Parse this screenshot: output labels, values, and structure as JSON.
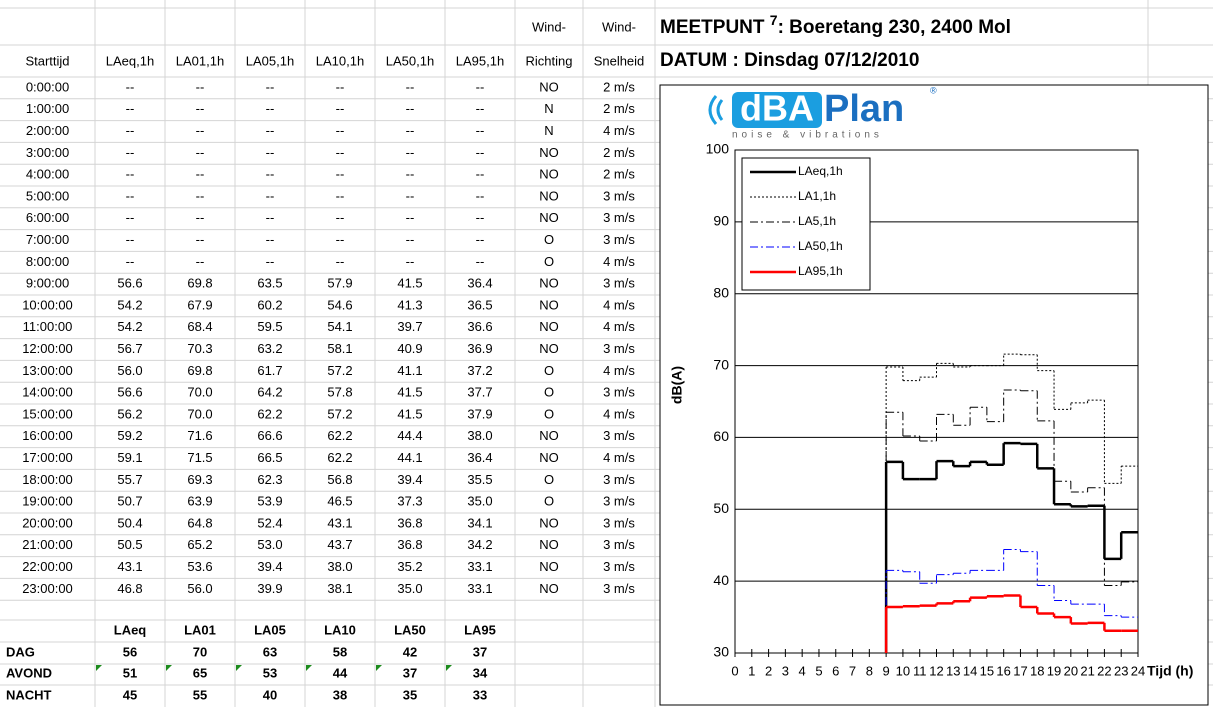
{
  "title": {
    "prefix": "MEETPUNT ",
    "number": "7",
    "rest": ": Boeretang 230, 2400 Mol"
  },
  "date": "DATUM : Dinsdag 07/12/2010",
  "logo": {
    "part1": "dBA",
    "part2": "Plan",
    "tagline": "noise & vibrations",
    "mark": "®"
  },
  "table": {
    "columns": [
      {
        "label": "Starttijd"
      },
      {
        "label": "LAeq,1h"
      },
      {
        "label": "LA01,1h"
      },
      {
        "label": "LA05,1h"
      },
      {
        "label": "LA10,1h"
      },
      {
        "label": "LA50,1h"
      },
      {
        "label": "LA95,1h"
      },
      {
        "top": "Wind-",
        "label": "Richting"
      },
      {
        "top": "Wind-",
        "label": "Snelheid"
      }
    ],
    "rows": [
      [
        "0:00:00",
        "--",
        "--",
        "--",
        "--",
        "--",
        "--",
        "NO",
        "2 m/s"
      ],
      [
        "1:00:00",
        "--",
        "--",
        "--",
        "--",
        "--",
        "--",
        "N",
        "2 m/s"
      ],
      [
        "2:00:00",
        "--",
        "--",
        "--",
        "--",
        "--",
        "--",
        "N",
        "4 m/s"
      ],
      [
        "3:00:00",
        "--",
        "--",
        "--",
        "--",
        "--",
        "--",
        "NO",
        "2 m/s"
      ],
      [
        "4:00:00",
        "--",
        "--",
        "--",
        "--",
        "--",
        "--",
        "NO",
        "2 m/s"
      ],
      [
        "5:00:00",
        "--",
        "--",
        "--",
        "--",
        "--",
        "--",
        "NO",
        "3 m/s"
      ],
      [
        "6:00:00",
        "--",
        "--",
        "--",
        "--",
        "--",
        "--",
        "NO",
        "3 m/s"
      ],
      [
        "7:00:00",
        "--",
        "--",
        "--",
        "--",
        "--",
        "--",
        "O",
        "3 m/s"
      ],
      [
        "8:00:00",
        "--",
        "--",
        "--",
        "--",
        "--",
        "--",
        "O",
        "4 m/s"
      ],
      [
        "9:00:00",
        "56.6",
        "69.8",
        "63.5",
        "57.9",
        "41.5",
        "36.4",
        "NO",
        "3 m/s"
      ],
      [
        "10:00:00",
        "54.2",
        "67.9",
        "60.2",
        "54.6",
        "41.3",
        "36.5",
        "NO",
        "4 m/s"
      ],
      [
        "11:00:00",
        "54.2",
        "68.4",
        "59.5",
        "54.1",
        "39.7",
        "36.6",
        "NO",
        "4 m/s"
      ],
      [
        "12:00:00",
        "56.7",
        "70.3",
        "63.2",
        "58.1",
        "40.9",
        "36.9",
        "NO",
        "3 m/s"
      ],
      [
        "13:00:00",
        "56.0",
        "69.8",
        "61.7",
        "57.2",
        "41.1",
        "37.2",
        "O",
        "4 m/s"
      ],
      [
        "14:00:00",
        "56.6",
        "70.0",
        "64.2",
        "57.8",
        "41.5",
        "37.7",
        "O",
        "3 m/s"
      ],
      [
        "15:00:00",
        "56.2",
        "70.0",
        "62.2",
        "57.2",
        "41.5",
        "37.9",
        "O",
        "4 m/s"
      ],
      [
        "16:00:00",
        "59.2",
        "71.6",
        "66.6",
        "62.2",
        "44.4",
        "38.0",
        "NO",
        "3 m/s"
      ],
      [
        "17:00:00",
        "59.1",
        "71.5",
        "66.5",
        "62.2",
        "44.1",
        "36.4",
        "NO",
        "4 m/s"
      ],
      [
        "18:00:00",
        "55.7",
        "69.3",
        "62.3",
        "56.8",
        "39.4",
        "35.5",
        "O",
        "3 m/s"
      ],
      [
        "19:00:00",
        "50.7",
        "63.9",
        "53.9",
        "46.5",
        "37.3",
        "35.0",
        "O",
        "3 m/s"
      ],
      [
        "20:00:00",
        "50.4",
        "64.8",
        "52.4",
        "43.1",
        "36.8",
        "34.1",
        "NO",
        "3 m/s"
      ],
      [
        "21:00:00",
        "50.5",
        "65.2",
        "53.0",
        "43.7",
        "36.8",
        "34.2",
        "NO",
        "3 m/s"
      ],
      [
        "22:00:00",
        "43.1",
        "53.6",
        "39.4",
        "38.0",
        "35.2",
        "33.1",
        "NO",
        "3 m/s"
      ],
      [
        "23:00:00",
        "46.8",
        "56.0",
        "39.9",
        "38.1",
        "35.0",
        "33.1",
        "NO",
        "3 m/s"
      ]
    ]
  },
  "summary": {
    "header": [
      "LAeq",
      "LA01",
      "LA05",
      "LA10",
      "LA50",
      "LA95"
    ],
    "rows": [
      [
        "DAG",
        "56",
        "70",
        "63",
        "58",
        "42",
        "37"
      ],
      [
        "AVOND",
        "51",
        "65",
        "53",
        "44",
        "37",
        "34"
      ],
      [
        "NACHT",
        "45",
        "55",
        "40",
        "38",
        "35",
        "33"
      ]
    ]
  },
  "chart_data": {
    "type": "step",
    "ylabel": "dB(A)",
    "xlabel": "Tijd (h)",
    "x": [
      9,
      10,
      11,
      12,
      13,
      14,
      15,
      16,
      17,
      18,
      19,
      20,
      21,
      22,
      23
    ],
    "xlim": [
      0,
      24
    ],
    "xticks": [
      0,
      1,
      2,
      3,
      4,
      5,
      6,
      7,
      8,
      9,
      10,
      11,
      12,
      13,
      14,
      15,
      16,
      17,
      18,
      19,
      20,
      21,
      22,
      23,
      24
    ],
    "ylim": [
      30,
      100
    ],
    "yticks": [
      30,
      40,
      50,
      60,
      70,
      80,
      90,
      100
    ],
    "grid": true,
    "legend": "upper left",
    "series": [
      {
        "name": "LAeq,1h",
        "color": "#000000",
        "dash": "solid",
        "values": [
          56.6,
          54.2,
          54.2,
          56.7,
          56.0,
          56.6,
          56.2,
          59.2,
          59.1,
          55.7,
          50.7,
          50.4,
          50.5,
          43.1,
          46.8
        ]
      },
      {
        "name": "LA1,1h",
        "color": "#000000",
        "dash": "dotted",
        "values": [
          69.8,
          67.9,
          68.4,
          70.3,
          69.8,
          70.0,
          70.0,
          71.6,
          71.5,
          69.3,
          63.9,
          64.8,
          65.2,
          53.6,
          56.0
        ]
      },
      {
        "name": "LA5,1h",
        "color": "#000000",
        "dash": "dashdot",
        "values": [
          63.5,
          60.2,
          59.5,
          63.2,
          61.7,
          64.2,
          62.2,
          66.6,
          66.5,
          62.3,
          53.9,
          52.4,
          53.0,
          39.4,
          39.9
        ]
      },
      {
        "name": "LA50,1h",
        "color": "#0000ff",
        "dash": "dashdot",
        "values": [
          41.5,
          41.3,
          39.7,
          40.9,
          41.1,
          41.5,
          41.5,
          44.4,
          44.1,
          39.4,
          37.3,
          36.8,
          36.8,
          35.2,
          35.0
        ]
      },
      {
        "name": "LA95,1h",
        "color": "#ff0000",
        "dash": "solid",
        "values": [
          36.4,
          36.5,
          36.6,
          36.9,
          37.2,
          37.7,
          37.9,
          38.0,
          36.4,
          35.5,
          35.0,
          34.1,
          34.2,
          33.1,
          33.1
        ]
      }
    ]
  }
}
